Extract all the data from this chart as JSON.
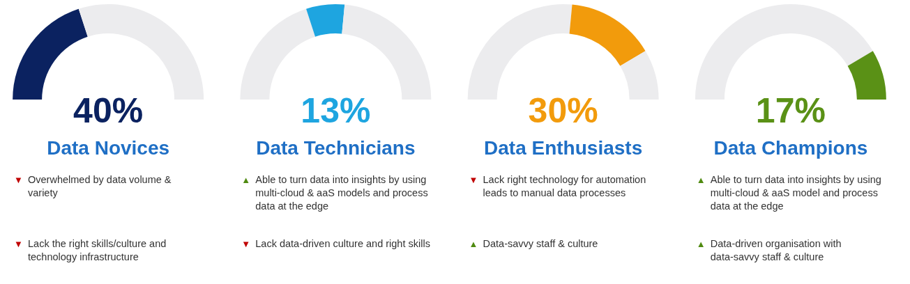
{
  "chart_data": [
    {
      "type": "donut",
      "title": "Data Novices",
      "categories": [
        null,
        null
      ],
      "values": [
        40,
        60
      ],
      "subtitle": "40%",
      "colors": [
        "#0b2260",
        "#ececee"
      ],
      "annotations": [
        "▼ Overwhelmed by data volume & variety",
        "▼ Lack the right skills/culture and technology infrastructure"
      ]
    },
    {
      "type": "donut",
      "title": "Data Technicians",
      "categories": [
        null,
        null,
        null
      ],
      "values": [
        40,
        13,
        47
      ],
      "subtitle": "13%",
      "colors": [
        "#ececee",
        "#1ea5e0",
        "#ececee"
      ],
      "annotations": [
        "▲ Able to turn data into insights by using multi-cloud & aaS models and process data at the edge",
        "▼ Lack data-driven culture and right skills"
      ]
    },
    {
      "type": "donut",
      "title": "Data Enthusiasts",
      "categories": [
        null,
        null,
        null
      ],
      "values": [
        53,
        30,
        17
      ],
      "subtitle": "30%",
      "colors": [
        "#ececee",
        "#f29b0c",
        "#ececee"
      ],
      "annotations": [
        "▼ Lack right technology for automation leads to manual data processes",
        "▲ Data-savvy staff & culture"
      ]
    },
    {
      "type": "donut",
      "title": "Data Champions",
      "categories": [
        null,
        null
      ],
      "values": [
        83,
        17
      ],
      "subtitle": "17%",
      "colors": [
        "#ececee",
        "#5a9116"
      ],
      "annotations": [
        "▲ Able to turn data into insights by using multi-cloud & aaS model and process data at the edge",
        "▲ Data-driven organisation with data-savvy staff & culture"
      ]
    }
  ]
}
